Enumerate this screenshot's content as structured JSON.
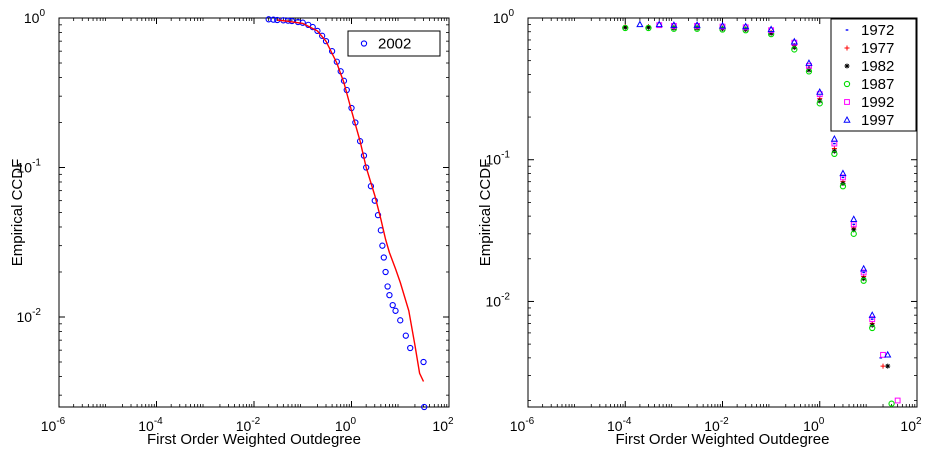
{
  "chart_data": [
    {
      "type": "scatter",
      "x_scale": "log",
      "y_scale": "log",
      "xlim": [
        1e-06,
        100
      ],
      "ylim": [
        0.0025,
        1
      ],
      "xlabel": "First Order Weighted Outdegree",
      "ylabel": "Empirical CCDF",
      "x_ticks": [
        {
          "base": "10",
          "exp": "-6",
          "value": 1e-06
        },
        {
          "base": "10",
          "exp": "-4",
          "value": 0.0001
        },
        {
          "base": "10",
          "exp": "-2",
          "value": 0.01
        },
        {
          "base": "10",
          "exp": "0",
          "value": 1
        },
        {
          "base": "10",
          "exp": "2",
          "value": 100
        }
      ],
      "y_ticks": [
        {
          "base": "10",
          "exp": "0",
          "value": 1
        },
        {
          "base": "10",
          "exp": "-1",
          "value": 0.1
        },
        {
          "base": "10",
          "exp": "-2",
          "value": 0.01
        }
      ],
      "legend": {
        "placement": "top-right"
      },
      "series": [
        {
          "name": "2002",
          "marker": "circle",
          "color": "#0000ff",
          "x": [
            0.02,
            0.025,
            0.03,
            0.04,
            0.05,
            0.06,
            0.08,
            0.1,
            0.13,
            0.16,
            0.2,
            0.25,
            0.3,
            0.4,
            0.5,
            0.6,
            0.7,
            0.8,
            1.0,
            1.2,
            1.5,
            1.8,
            2.0,
            2.5,
            3.0,
            3.5,
            4.0,
            4.3,
            4.6,
            5.0,
            5.5,
            6.0,
            7.0,
            8.0,
            10.0,
            13.0,
            16.0,
            30.0,
            31.0
          ],
          "y": [
            0.98,
            0.975,
            0.97,
            0.965,
            0.96,
            0.955,
            0.94,
            0.93,
            0.9,
            0.87,
            0.82,
            0.76,
            0.7,
            0.6,
            0.51,
            0.44,
            0.38,
            0.33,
            0.25,
            0.2,
            0.15,
            0.12,
            0.1,
            0.075,
            0.06,
            0.048,
            0.038,
            0.03,
            0.025,
            0.02,
            0.016,
            0.014,
            0.012,
            0.011,
            0.0095,
            0.0075,
            0.0062,
            0.005,
            0.0025
          ]
        },
        {
          "name": "",
          "marker": "line",
          "color": "#ff0000",
          "x": [
            0.03,
            0.05,
            0.1,
            0.2,
            0.3,
            0.5,
            0.7,
            1.0,
            1.5,
            2.0,
            3.0,
            4.0,
            5.0,
            6.0,
            8.0,
            10.0,
            15.0,
            20.0,
            25.0,
            30.0
          ],
          "y": [
            0.97,
            0.95,
            0.92,
            0.82,
            0.7,
            0.5,
            0.37,
            0.24,
            0.15,
            0.1,
            0.065,
            0.045,
            0.033,
            0.027,
            0.021,
            0.017,
            0.011,
            0.0065,
            0.0042,
            0.0037
          ]
        }
      ]
    },
    {
      "type": "scatter",
      "x_scale": "log",
      "y_scale": "log",
      "xlim": [
        1e-06,
        100
      ],
      "ylim": [
        0.0018,
        1
      ],
      "xlabel": "First Order Weighted Outdegree",
      "ylabel": "Empirical CCDF",
      "x_ticks": [
        {
          "base": "10",
          "exp": "-6",
          "value": 1e-06
        },
        {
          "base": "10",
          "exp": "-4",
          "value": 0.0001
        },
        {
          "base": "10",
          "exp": "-2",
          "value": 0.01
        },
        {
          "base": "10",
          "exp": "0",
          "value": 1
        },
        {
          "base": "10",
          "exp": "2",
          "value": 100
        }
      ],
      "y_ticks": [
        {
          "base": "10",
          "exp": "0",
          "value": 1
        },
        {
          "base": "10",
          "exp": "-1",
          "value": 0.1
        },
        {
          "base": "10",
          "exp": "-2",
          "value": 0.01
        }
      ],
      "legend": {
        "placement": "top-right"
      },
      "series": [
        {
          "name": "1972",
          "marker": "dot",
          "color": "#0000ff",
          "x": [
            0.0001,
            0.0003,
            0.001,
            0.003,
            0.01,
            0.03,
            0.1,
            0.3,
            0.6,
            1.0,
            2.0,
            3.0,
            5.0,
            8.0,
            12.0,
            18.0
          ],
          "y": [
            0.88,
            0.88,
            0.87,
            0.87,
            0.86,
            0.85,
            0.8,
            0.65,
            0.45,
            0.28,
            0.13,
            0.075,
            0.035,
            0.016,
            0.0075,
            0.004
          ]
        },
        {
          "name": "1977",
          "marker": "plus",
          "color": "#ff0000",
          "x": [
            0.0001,
            0.0003,
            0.001,
            0.003,
            0.01,
            0.03,
            0.1,
            0.3,
            0.6,
            1.0,
            2.0,
            3.0,
            5.0,
            8.0,
            12.0,
            20.0
          ],
          "y": [
            0.87,
            0.87,
            0.86,
            0.86,
            0.85,
            0.84,
            0.79,
            0.64,
            0.44,
            0.27,
            0.12,
            0.07,
            0.033,
            0.015,
            0.007,
            0.0035
          ]
        },
        {
          "name": "1982",
          "marker": "star",
          "color": "#000000",
          "x": [
            0.0001,
            0.0003,
            0.001,
            0.003,
            0.01,
            0.03,
            0.1,
            0.3,
            0.6,
            1.0,
            2.0,
            3.0,
            5.0,
            8.0,
            12.0,
            25.0
          ],
          "y": [
            0.86,
            0.86,
            0.85,
            0.85,
            0.84,
            0.83,
            0.78,
            0.62,
            0.43,
            0.26,
            0.115,
            0.068,
            0.032,
            0.0145,
            0.0068,
            0.0035
          ]
        },
        {
          "name": "1987",
          "marker": "circle",
          "color": "#00dd00",
          "x": [
            0.0001,
            0.0003,
            0.001,
            0.003,
            0.01,
            0.03,
            0.1,
            0.3,
            0.6,
            1.0,
            2.0,
            3.0,
            5.0,
            8.0,
            12.0,
            30.0
          ],
          "y": [
            0.85,
            0.85,
            0.84,
            0.84,
            0.83,
            0.82,
            0.77,
            0.6,
            0.42,
            0.25,
            0.11,
            0.065,
            0.03,
            0.014,
            0.0065,
            0.0019
          ]
        },
        {
          "name": "1992",
          "marker": "square",
          "color": "#ff00ff",
          "x": [
            0.0005,
            0.001,
            0.003,
            0.01,
            0.03,
            0.1,
            0.3,
            0.6,
            1.0,
            2.0,
            3.0,
            5.0,
            8.0,
            12.0,
            20.0,
            40.0
          ],
          "y": [
            0.89,
            0.88,
            0.88,
            0.87,
            0.86,
            0.82,
            0.67,
            0.46,
            0.29,
            0.13,
            0.075,
            0.035,
            0.016,
            0.0075,
            0.0042,
            0.002
          ]
        },
        {
          "name": "1997",
          "marker": "triangle",
          "color": "#0000ff",
          "x": [
            0.0002,
            0.0005,
            0.001,
            0.003,
            0.01,
            0.03,
            0.1,
            0.3,
            0.6,
            1.0,
            2.0,
            3.0,
            5.0,
            8.0,
            12.0,
            25.0
          ],
          "y": [
            0.9,
            0.9,
            0.89,
            0.89,
            0.88,
            0.87,
            0.83,
            0.68,
            0.48,
            0.3,
            0.14,
            0.08,
            0.038,
            0.017,
            0.008,
            0.0042
          ]
        }
      ]
    }
  ]
}
